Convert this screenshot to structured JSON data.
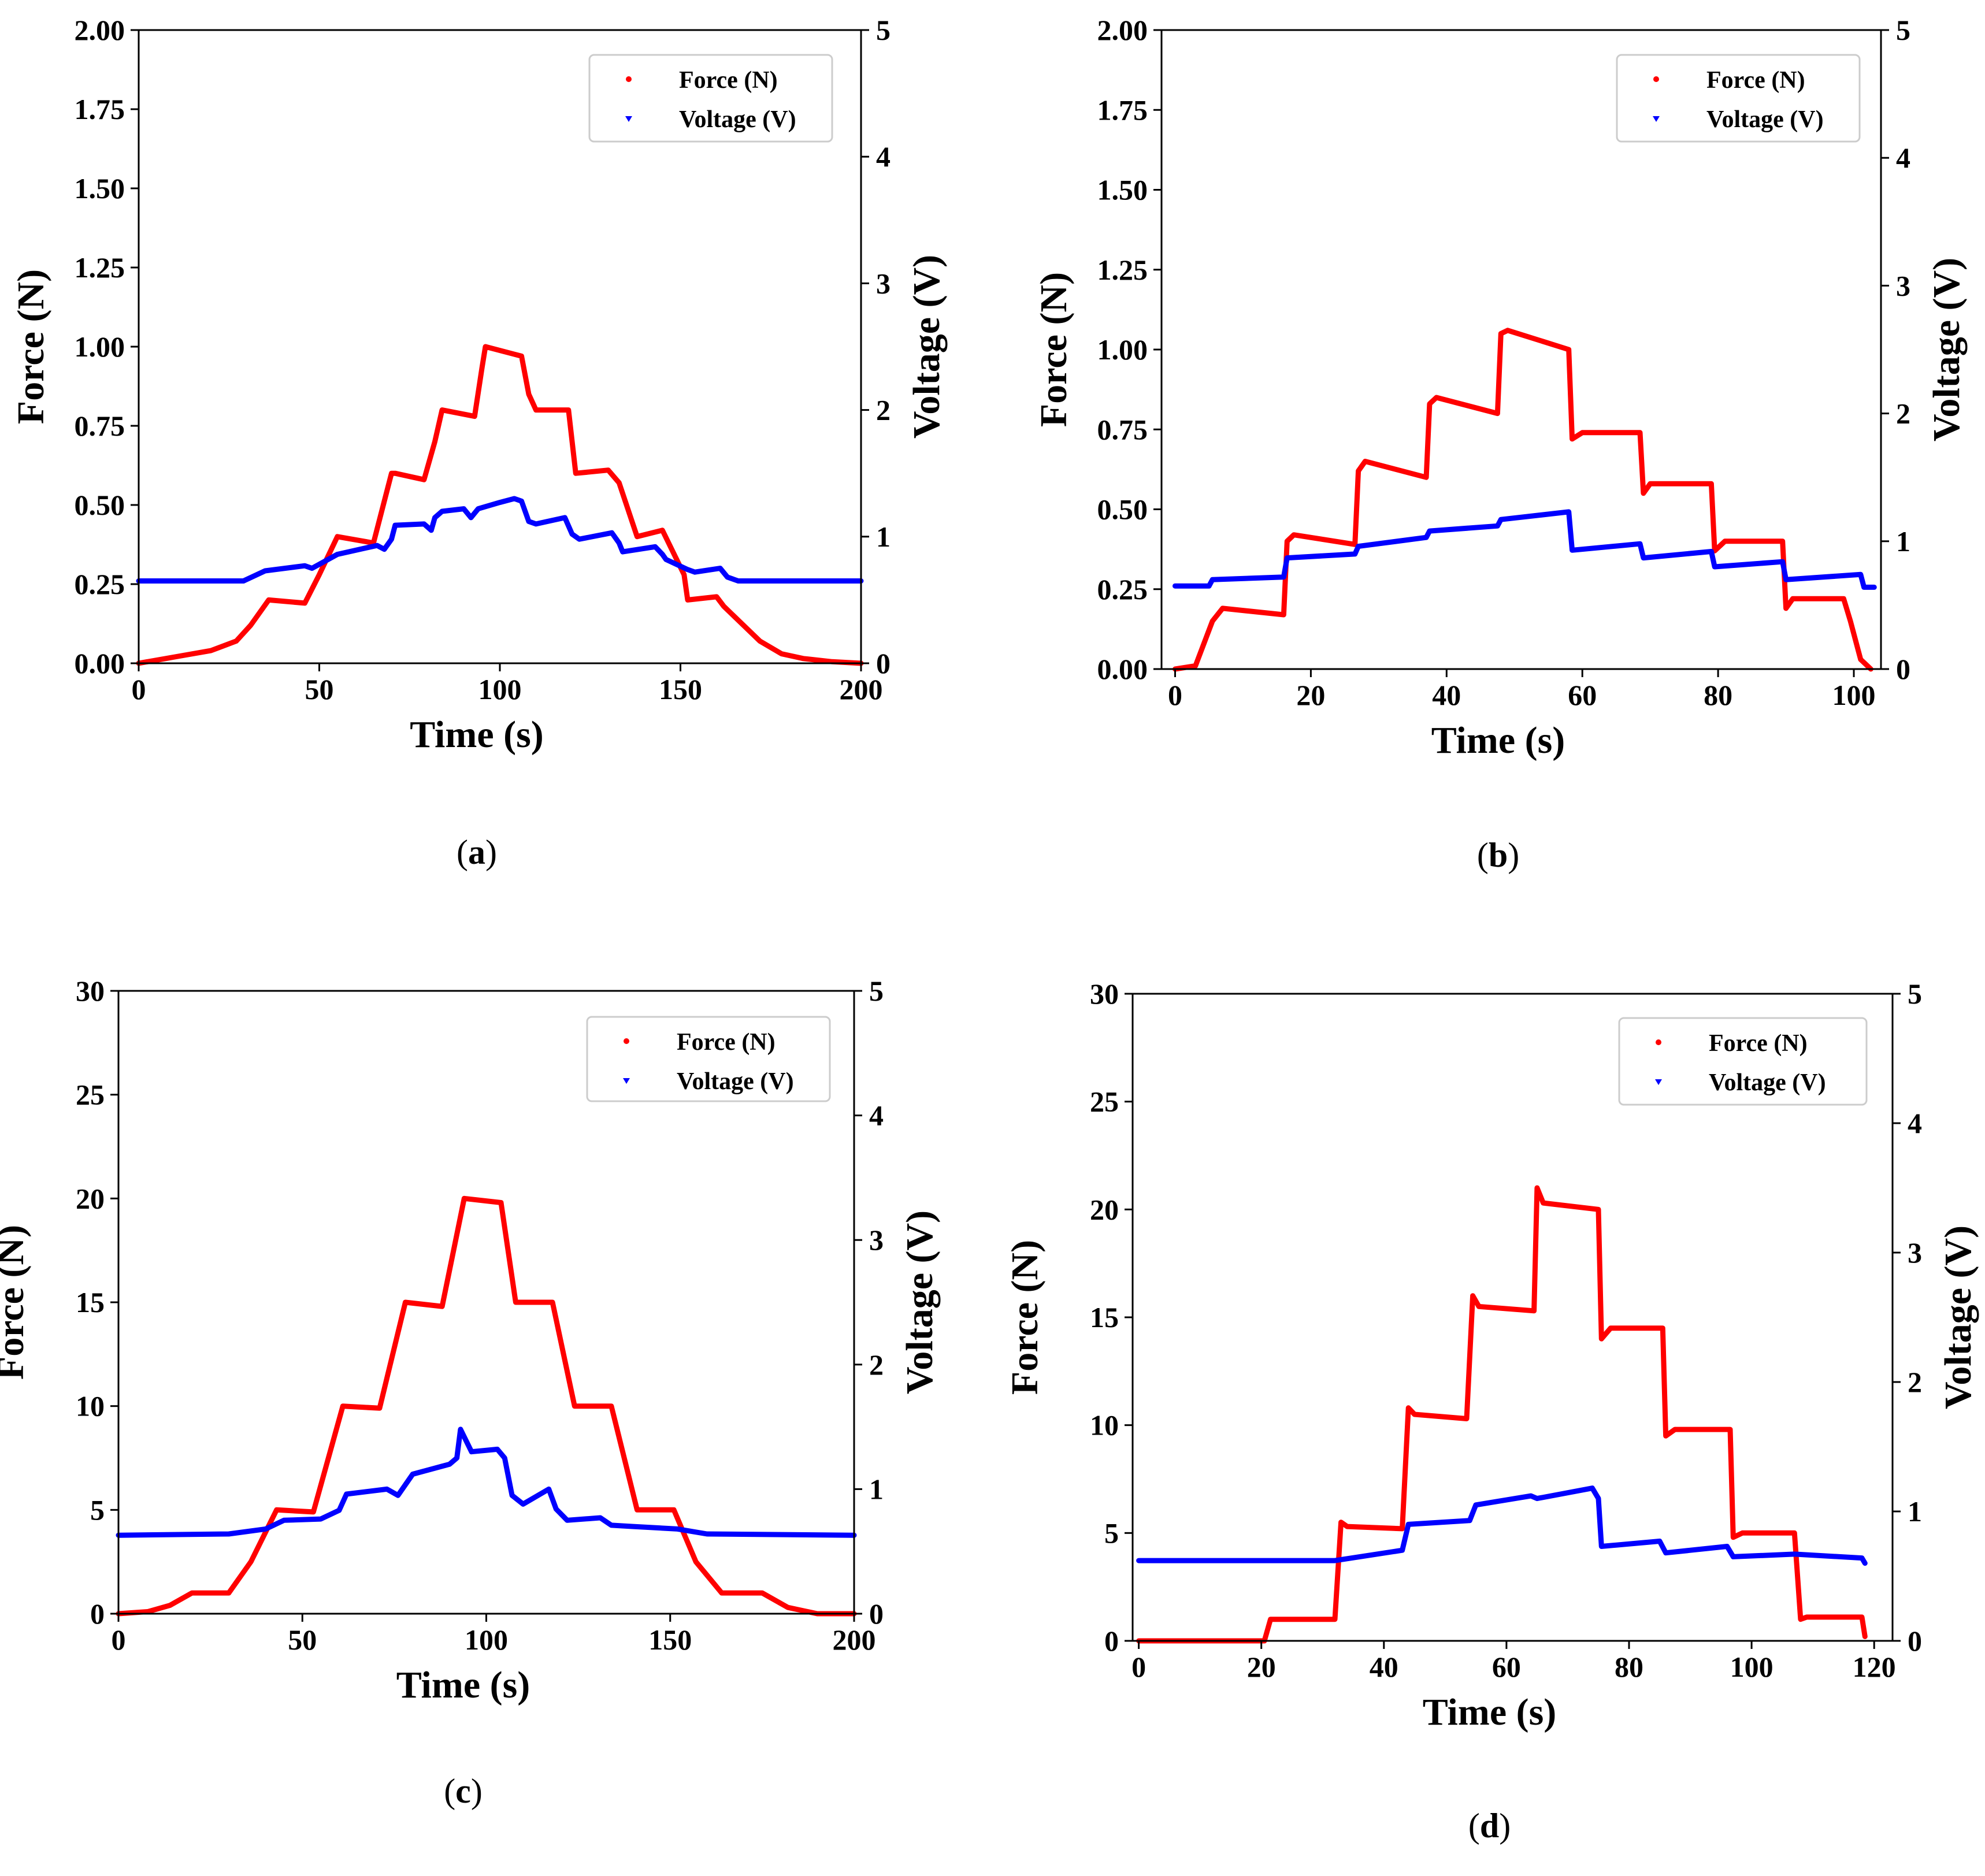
{
  "colors": {
    "force": "#ff0000",
    "voltage": "#0000ff",
    "axis": "#000000",
    "legend_border": "#cccccc",
    "background": "#ffffff"
  },
  "chart_data": [
    {
      "id": "a",
      "type": "line",
      "panel_label": "a",
      "xlabel": "Time (s)",
      "ylabel_left": "Force (N)",
      "ylabel_right": "Voltage (V)",
      "xlim": [
        0,
        200
      ],
      "ylim_left": [
        0,
        2.0
      ],
      "ylim_right": [
        0,
        5
      ],
      "xticks": [
        0,
        50,
        100,
        150,
        200
      ],
      "xtick_labels": [
        "0",
        "50",
        "100",
        "150",
        "200"
      ],
      "yticks_left": [
        0,
        0.25,
        0.5,
        0.75,
        1.0,
        1.25,
        1.5,
        1.75,
        2.0
      ],
      "ytick_labels_left": [
        "0.00",
        "0.25",
        "0.50",
        "0.75",
        "1.00",
        "1.25",
        "1.50",
        "1.75",
        "2.00"
      ],
      "yticks_right": [
        0,
        1,
        2,
        3,
        4,
        5
      ],
      "ytick_labels_right": [
        "0",
        "1",
        "2",
        "3",
        "4",
        "5"
      ],
      "legend": [
        {
          "label": "Force (N)",
          "series": "force",
          "marker": "dot"
        },
        {
          "label": "Voltage (V)",
          "series": "voltage",
          "marker": "triangle"
        }
      ],
      "series": [
        {
          "name": "Force (N)",
          "axis": "left",
          "x": [
            0,
            10,
            20,
            27,
            31,
            36,
            46,
            50,
            55,
            65,
            70,
            71,
            79,
            82,
            84,
            93,
            95,
            96,
            106,
            108,
            110,
            119,
            121,
            130,
            133,
            138,
            145,
            151,
            152,
            160,
            162,
            172,
            178,
            184,
            192,
            200
          ],
          "y": [
            0.0,
            0.02,
            0.04,
            0.07,
            0.12,
            0.2,
            0.19,
            0.28,
            0.4,
            0.38,
            0.6,
            0.6,
            0.58,
            0.7,
            0.8,
            0.78,
            0.93,
            1.0,
            0.97,
            0.85,
            0.8,
            0.8,
            0.6,
            0.61,
            0.57,
            0.4,
            0.42,
            0.28,
            0.2,
            0.21,
            0.18,
            0.07,
            0.03,
            0.015,
            0.005,
            0.0
          ]
        },
        {
          "name": "Voltage (V)",
          "axis": "right",
          "x": [
            0,
            29,
            35,
            46,
            48,
            55,
            66,
            68,
            70,
            71,
            79,
            81,
            82,
            84,
            90,
            92,
            94,
            100,
            104,
            106,
            108,
            110,
            118,
            120,
            122,
            131,
            133,
            134,
            143,
            145,
            146,
            152,
            154,
            161,
            163,
            166,
            200
          ],
          "y": [
            0.65,
            0.65,
            0.73,
            0.77,
            0.75,
            0.86,
            0.93,
            0.9,
            0.98,
            1.09,
            1.1,
            1.05,
            1.15,
            1.2,
            1.22,
            1.15,
            1.22,
            1.27,
            1.3,
            1.28,
            1.12,
            1.1,
            1.15,
            1.02,
            0.98,
            1.03,
            0.95,
            0.88,
            0.92,
            0.86,
            0.82,
            0.74,
            0.72,
            0.75,
            0.68,
            0.65,
            0.65
          ]
        }
      ]
    },
    {
      "id": "b",
      "type": "line",
      "panel_label": "b",
      "xlabel": "Time (s)",
      "ylabel_left": "Force (N)",
      "ylabel_right": "Voltage (V)",
      "xlim": [
        -2,
        104
      ],
      "ylim_left": [
        0,
        2.0
      ],
      "ylim_right": [
        0,
        5
      ],
      "xticks": [
        0,
        20,
        40,
        60,
        80,
        100
      ],
      "xtick_labels": [
        "0",
        "20",
        "40",
        "60",
        "80",
        "100"
      ],
      "yticks_left": [
        0,
        0.25,
        0.5,
        0.75,
        1.0,
        1.25,
        1.5,
        1.75,
        2.0
      ],
      "ytick_labels_left": [
        "0.00",
        "0.25",
        "0.50",
        "0.75",
        "1.00",
        "1.25",
        "1.50",
        "1.75",
        "2.00"
      ],
      "yticks_right": [
        0,
        1,
        2,
        3,
        4,
        5
      ],
      "ytick_labels_right": [
        "0",
        "1",
        "2",
        "3",
        "4",
        "5"
      ],
      "legend": [
        {
          "label": "Force (N)",
          "series": "force",
          "marker": "dot"
        },
        {
          "label": "Voltage (V)",
          "series": "voltage",
          "marker": "triangle"
        }
      ],
      "series": [
        {
          "name": "Force (N)",
          "axis": "left",
          "x": [
            0,
            3,
            5.5,
            7,
            16,
            16.5,
            17.5,
            26.5,
            27,
            28,
            37,
            37.5,
            38.5,
            47.5,
            48,
            49,
            58,
            58.5,
            60,
            68.5,
            69,
            70,
            79,
            79.5,
            81,
            89.5,
            90,
            91,
            98.5,
            99.5,
            101,
            102.5
          ],
          "y": [
            0.0,
            0.01,
            0.15,
            0.19,
            0.17,
            0.4,
            0.42,
            0.39,
            0.62,
            0.65,
            0.6,
            0.83,
            0.85,
            0.8,
            1.05,
            1.06,
            1.0,
            0.72,
            0.74,
            0.74,
            0.55,
            0.58,
            0.58,
            0.37,
            0.4,
            0.4,
            0.19,
            0.22,
            0.22,
            0.15,
            0.03,
            0.0
          ]
        },
        {
          "name": "Voltage (V)",
          "axis": "right",
          "x": [
            0,
            5,
            5.5,
            16,
            16.5,
            26.5,
            27,
            37,
            37.5,
            47.5,
            48,
            58,
            58.5,
            68.5,
            69,
            79,
            79.5,
            89.5,
            90,
            101,
            101.5,
            103
          ],
          "y": [
            0.65,
            0.65,
            0.7,
            0.72,
            0.87,
            0.9,
            0.96,
            1.03,
            1.08,
            1.12,
            1.17,
            1.23,
            0.93,
            0.98,
            0.87,
            0.92,
            0.8,
            0.84,
            0.7,
            0.74,
            0.64,
            0.64
          ]
        }
      ]
    },
    {
      "id": "c",
      "type": "line",
      "panel_label": "c",
      "xlabel": "Time (s)",
      "ylabel_left": "Force (N)",
      "ylabel_right": "Voltage (V)",
      "xlim": [
        0,
        200
      ],
      "ylim_left": [
        0,
        30
      ],
      "ylim_right": [
        0,
        5
      ],
      "xticks": [
        0,
        50,
        100,
        150,
        200
      ],
      "xtick_labels": [
        "0",
        "50",
        "100",
        "150",
        "200"
      ],
      "yticks_left": [
        0,
        5,
        10,
        15,
        20,
        25,
        30
      ],
      "ytick_labels_left": [
        "0",
        "5",
        "10",
        "15",
        "20",
        "25",
        "30"
      ],
      "yticks_right": [
        0,
        1,
        2,
        3,
        4,
        5
      ],
      "ytick_labels_right": [
        "0",
        "1",
        "2",
        "3",
        "4",
        "5"
      ],
      "legend": [
        {
          "label": "Force (N)",
          "series": "force",
          "marker": "dot"
        },
        {
          "label": "Voltage (V)",
          "series": "voltage",
          "marker": "triangle"
        }
      ],
      "series": [
        {
          "name": "Force (N)",
          "axis": "left",
          "x": [
            0,
            8,
            14,
            20,
            30,
            36,
            43,
            53,
            61,
            71,
            78,
            88,
            94,
            104,
            108,
            118,
            124,
            134,
            141,
            151,
            157,
            164,
            175,
            182,
            190,
            200
          ],
          "y": [
            0.0,
            0.1,
            0.4,
            1.0,
            1.0,
            2.5,
            5.0,
            4.9,
            10.0,
            9.9,
            15.0,
            14.8,
            20.0,
            19.8,
            15.0,
            15.0,
            10.0,
            10.0,
            5.0,
            5.0,
            2.5,
            1.0,
            1.0,
            0.3,
            0.0,
            0.0
          ]
        },
        {
          "name": "Voltage (V)",
          "axis": "right",
          "x": [
            0,
            30,
            40,
            45,
            55,
            60,
            62,
            73,
            76,
            80,
            90,
            92,
            93,
            96,
            103,
            105,
            107,
            110,
            117,
            119,
            122,
            131,
            134,
            140,
            152,
            160,
            200
          ],
          "y": [
            0.63,
            0.64,
            0.68,
            0.75,
            0.76,
            0.83,
            0.96,
            1.0,
            0.95,
            1.12,
            1.2,
            1.25,
            1.48,
            1.3,
            1.32,
            1.25,
            0.95,
            0.88,
            1.0,
            0.84,
            0.75,
            0.77,
            0.71,
            0.7,
            0.68,
            0.64,
            0.63
          ]
        }
      ]
    },
    {
      "id": "d",
      "type": "line",
      "panel_label": "d",
      "xlabel": "Time (s)",
      "ylabel_left": "Force (N)",
      "ylabel_right": "Voltage (V)",
      "xlim": [
        -1,
        123
      ],
      "ylim_left": [
        0,
        30
      ],
      "ylim_right": [
        0,
        5
      ],
      "xticks": [
        0,
        20,
        40,
        60,
        80,
        100,
        120
      ],
      "xtick_labels": [
        "0",
        "20",
        "40",
        "60",
        "80",
        "100",
        "120"
      ],
      "yticks_left": [
        0,
        5,
        10,
        15,
        20,
        25,
        30
      ],
      "ytick_labels_left": [
        "0",
        "5",
        "10",
        "15",
        "20",
        "25",
        "30"
      ],
      "yticks_right": [
        0,
        1,
        2,
        3,
        4,
        5
      ],
      "ytick_labels_right": [
        "0",
        "1",
        "2",
        "3",
        "4",
        "5"
      ],
      "legend": [
        {
          "label": "Force (N)",
          "series": "force",
          "marker": "dot"
        },
        {
          "label": "Voltage (V)",
          "series": "voltage",
          "marker": "triangle"
        }
      ],
      "series": [
        {
          "name": "Force (N)",
          "axis": "left",
          "x": [
            0,
            20.5,
            21.5,
            32,
            33,
            34,
            43,
            44,
            45,
            53.5,
            54.5,
            55.5,
            64.5,
            65,
            66,
            75,
            75.5,
            77,
            85.5,
            86,
            87.5,
            96.5,
            97,
            98.5,
            107,
            108,
            109,
            118,
            118.5
          ],
          "y": [
            0.0,
            0.0,
            1.0,
            1.0,
            5.5,
            5.3,
            5.2,
            10.8,
            10.5,
            10.3,
            16.0,
            15.5,
            15.3,
            21.0,
            20.3,
            20.0,
            14.0,
            14.5,
            14.5,
            9.5,
            9.8,
            9.8,
            4.8,
            5.0,
            5.0,
            1.0,
            1.1,
            1.1,
            0.2
          ]
        },
        {
          "name": "Voltage (V)",
          "axis": "right",
          "x": [
            0,
            32,
            43,
            44,
            54,
            55,
            64,
            65,
            74,
            75,
            75.5,
            85,
            86,
            96,
            97,
            107,
            118,
            118.5
          ],
          "y": [
            0.62,
            0.62,
            0.7,
            0.9,
            0.93,
            1.05,
            1.12,
            1.1,
            1.18,
            1.1,
            0.73,
            0.77,
            0.68,
            0.73,
            0.65,
            0.67,
            0.64,
            0.6
          ]
        }
      ]
    }
  ]
}
